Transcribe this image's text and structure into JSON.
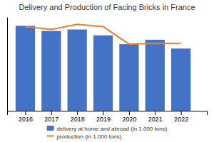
{
  "chart_data": {
    "type": "bar",
    "title": "Delivery and Production of Facing Bricks in France",
    "x": [
      2016,
      2017,
      2018,
      2019,
      2020,
      2021,
      2022
    ],
    "xlim": [
      2015.3,
      2023.0
    ],
    "xticks": [
      2016,
      2017,
      2018,
      2019,
      2020,
      2021,
      2022
    ],
    "ylim": [
      0,
      640
    ],
    "yticks": [],
    "grid": false,
    "tick_labels": "x",
    "legend": "bottom",
    "series": [
      {
        "name": "delivery at home and abroad (in 1.000 tons)",
        "type": "bar",
        "color": "#4472C4",
        "values": [
          580,
          545,
          555,
          515,
          455,
          485,
          425
        ]
      },
      {
        "name": "production (in 1.000 tons)",
        "type": "line",
        "color": "#ED7D31",
        "values": [
          575,
          555,
          590,
          575,
          455,
          460,
          460
        ]
      }
    ]
  }
}
